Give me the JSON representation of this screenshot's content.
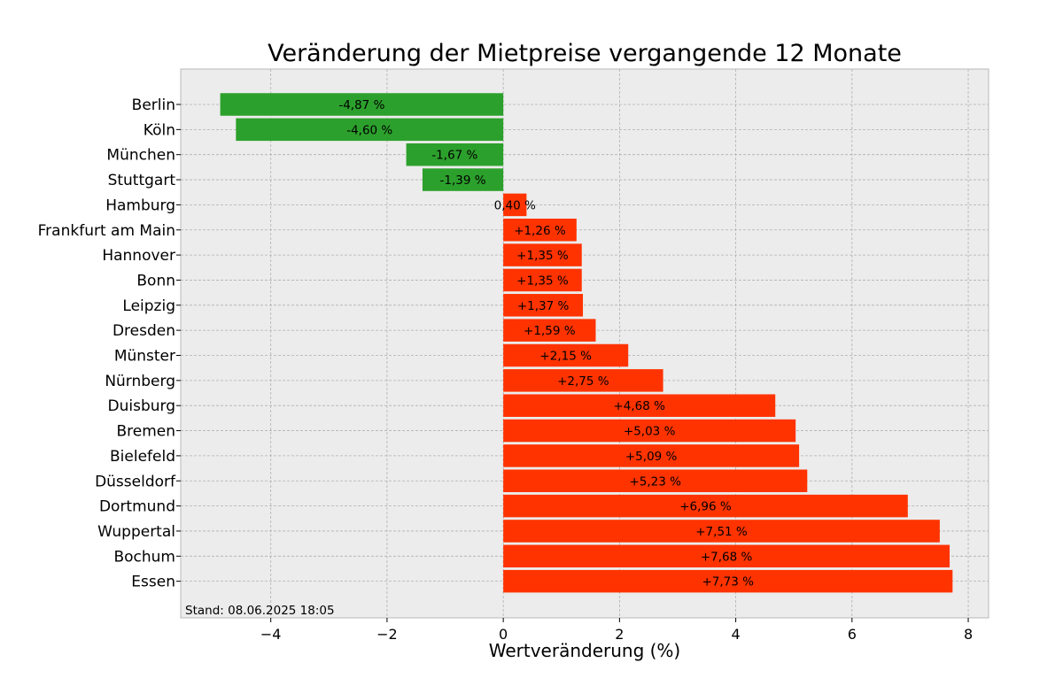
{
  "chart_data": {
    "type": "bar",
    "orientation": "horizontal",
    "title": "Veränderung der Mietpreise vergangende 12 Monate",
    "xlabel": "Wertveränderung (%)",
    "ylabel": "",
    "xlim": [
      -5.55,
      8.35
    ],
    "xticks": [
      -4,
      -2,
      0,
      2,
      4,
      6,
      8
    ],
    "xtick_labels": [
      "−4",
      "−2",
      "0",
      "2",
      "4",
      "6",
      "8"
    ],
    "grid": true,
    "categories": [
      "Berlin",
      "Köln",
      "München",
      "Stuttgart",
      "Hamburg",
      "Frankfurt am Main",
      "Hannover",
      "Bonn",
      "Leipzig",
      "Dresden",
      "Münster",
      "Nürnberg",
      "Duisburg",
      "Bremen",
      "Bielefeld",
      "Düsseldorf",
      "Dortmund",
      "Wuppertal",
      "Bochum",
      "Essen"
    ],
    "values": [
      -4.87,
      -4.6,
      -1.67,
      -1.39,
      0.4,
      1.26,
      1.35,
      1.35,
      1.37,
      1.59,
      2.15,
      2.75,
      4.68,
      5.03,
      5.09,
      5.23,
      6.96,
      7.51,
      7.68,
      7.73
    ],
    "value_labels": [
      "-4,87 %",
      "-4,60 %",
      "-1,67 %",
      "-1,39 %",
      "0,40 %",
      "+1,26 %",
      "+1,35 %",
      "+1,35 %",
      "+1,37 %",
      "+1,59 %",
      "+2,15 %",
      "+2,75 %",
      "+4,68 %",
      "+5,03 %",
      "+5,09 %",
      "+5,23 %",
      "+6,96 %",
      "+7,51 %",
      "+7,68 %",
      "+7,73 %"
    ],
    "colors": {
      "negative": "#2ca02c",
      "positive": "#ff3300",
      "plot_background": "#ececec"
    }
  },
  "footnote": "Stand: 08.06.2025 18:05"
}
